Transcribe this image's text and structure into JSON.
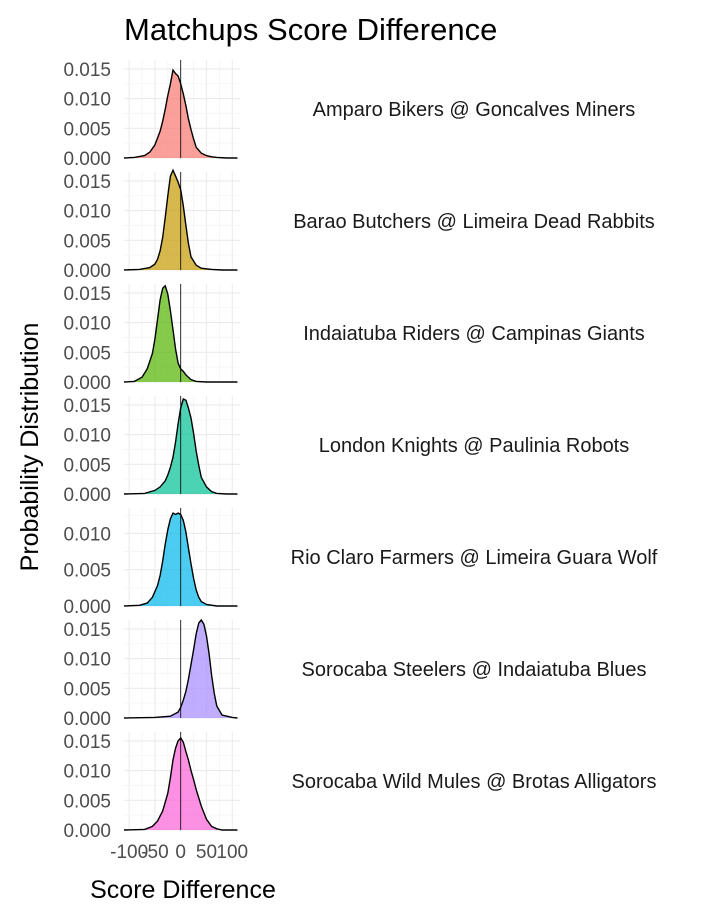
{
  "chart_data": {
    "type": "area",
    "title": "Matchups Score Difference",
    "xlabel": "Score Difference",
    "ylabel": "Probability Distribution",
    "xlim": [
      -110,
      115
    ],
    "x_ticks": [
      -100,
      -50,
      0,
      50,
      100
    ],
    "x_tick_labels": [
      "-100",
      "-50",
      "0",
      "50",
      "100"
    ],
    "reference_line_x": 0,
    "grid": true,
    "legend": "none",
    "facets": [
      {
        "label": "Amparo Bikers @ Goncalves Miners",
        "color": "#F8766D",
        "ylim": [
          0,
          0.0165
        ],
        "y_ticks": [
          0,
          0.005,
          0.01,
          0.015
        ],
        "y_tick_labels": [
          "0.000",
          "0.005",
          "0.010",
          "0.015"
        ],
        "x": [
          -110,
          -90,
          -70,
          -60,
          -50,
          -40,
          -35,
          -30,
          -25,
          -20,
          -15,
          -10,
          -5,
          0,
          5,
          10,
          15,
          20,
          25,
          30,
          40,
          50,
          60,
          70,
          90,
          110
        ],
        "density": [
          0,
          0.0001,
          0.0004,
          0.001,
          0.0022,
          0.0045,
          0.0062,
          0.0082,
          0.0105,
          0.0125,
          0.0148,
          0.0142,
          0.0138,
          0.0125,
          0.0108,
          0.0088,
          0.0066,
          0.0048,
          0.0032,
          0.0018,
          0.0008,
          0.0004,
          0.0002,
          0.0001,
          0,
          0
        ]
      },
      {
        "label": "Barao Butchers @ Limeira Dead Rabbits",
        "color": "#C49A00",
        "ylim": [
          0,
          0.0165
        ],
        "y_ticks": [
          0,
          0.005,
          0.01,
          0.015
        ],
        "y_tick_labels": [
          "0.000",
          "0.005",
          "0.010",
          "0.015"
        ],
        "x": [
          -110,
          -80,
          -60,
          -50,
          -45,
          -40,
          -35,
          -30,
          -25,
          -20,
          -15,
          -10,
          -5,
          0,
          5,
          10,
          15,
          20,
          30,
          40,
          60,
          80,
          110
        ],
        "density": [
          0,
          0.0001,
          0.0004,
          0.001,
          0.0018,
          0.0032,
          0.0055,
          0.0088,
          0.0125,
          0.0158,
          0.0168,
          0.0158,
          0.0148,
          0.0135,
          0.0108,
          0.0075,
          0.0045,
          0.0022,
          0.0008,
          0.0003,
          0.0001,
          0,
          0
        ]
      },
      {
        "label": "Indaiatuba Riders @ Campinas Giants",
        "color": "#53B400",
        "ylim": [
          0,
          0.0165
        ],
        "y_ticks": [
          0,
          0.005,
          0.01,
          0.015
        ],
        "y_tick_labels": [
          "0.000",
          "0.005",
          "0.010",
          "0.015"
        ],
        "x": [
          -110,
          -90,
          -75,
          -65,
          -55,
          -50,
          -45,
          -40,
          -35,
          -30,
          -25,
          -20,
          -15,
          -10,
          -5,
          0,
          5,
          10,
          20,
          30,
          50,
          70,
          110
        ],
        "density": [
          0,
          0.0001,
          0.0008,
          0.0022,
          0.0048,
          0.0072,
          0.0105,
          0.0138,
          0.0158,
          0.0162,
          0.0148,
          0.012,
          0.0088,
          0.0055,
          0.0032,
          0.0022,
          0.0018,
          0.0012,
          0.0004,
          0.0001,
          0,
          0,
          0
        ]
      },
      {
        "label": "London Knights @ Paulinia Robots",
        "color": "#00C094",
        "ylim": [
          0,
          0.0165
        ],
        "y_ticks": [
          0,
          0.005,
          0.01,
          0.015
        ],
        "y_tick_labels": [
          "0.000",
          "0.005",
          "0.010",
          "0.015"
        ],
        "x": [
          -110,
          -70,
          -50,
          -40,
          -30,
          -25,
          -20,
          -15,
          -10,
          -5,
          0,
          5,
          10,
          15,
          20,
          25,
          30,
          35,
          40,
          50,
          60,
          70,
          90,
          110
        ],
        "density": [
          0,
          0.0001,
          0.0006,
          0.0012,
          0.0022,
          0.0032,
          0.0045,
          0.0062,
          0.0088,
          0.0118,
          0.0145,
          0.016,
          0.0158,
          0.0145,
          0.0128,
          0.0102,
          0.0072,
          0.0048,
          0.0028,
          0.0012,
          0.0004,
          0.0001,
          0,
          0
        ]
      },
      {
        "label": "Rio Claro Farmers @ Limeira Guara Wolf",
        "color": "#00B6EB",
        "ylim": [
          0,
          0.0135
        ],
        "y_ticks": [
          0,
          0.005,
          0.01
        ],
        "y_tick_labels": [
          "0.000",
          "0.005",
          "0.010"
        ],
        "x": [
          -110,
          -80,
          -65,
          -55,
          -45,
          -40,
          -35,
          -30,
          -25,
          -20,
          -15,
          -10,
          -5,
          0,
          5,
          10,
          15,
          20,
          25,
          30,
          35,
          40,
          50,
          70,
          90,
          110
        ],
        "density": [
          0,
          0.0001,
          0.0004,
          0.0012,
          0.0028,
          0.0042,
          0.0062,
          0.0085,
          0.0105,
          0.012,
          0.0128,
          0.0126,
          0.0128,
          0.0126,
          0.0118,
          0.0102,
          0.008,
          0.0058,
          0.0038,
          0.0022,
          0.0012,
          0.0006,
          0.0002,
          0,
          0,
          0
        ]
      },
      {
        "label": "Sorocaba Steelers @ Indaiatuba Blues",
        "color": "#A58AFF",
        "ylim": [
          0,
          0.0165
        ],
        "y_ticks": [
          0,
          0.005,
          0.01,
          0.015
        ],
        "y_tick_labels": [
          "0.000",
          "0.005",
          "0.010",
          "0.015"
        ],
        "x": [
          -110,
          -50,
          -20,
          -5,
          0,
          5,
          10,
          15,
          20,
          25,
          30,
          35,
          40,
          45,
          50,
          55,
          60,
          65,
          70,
          80,
          100,
          110
        ],
        "density": [
          0,
          0.0001,
          0.0003,
          0.001,
          0.0018,
          0.003,
          0.0045,
          0.0065,
          0.009,
          0.0115,
          0.0142,
          0.016,
          0.0165,
          0.0158,
          0.0138,
          0.0108,
          0.0072,
          0.0042,
          0.002,
          0.0005,
          0.0001,
          0
        ]
      },
      {
        "label": "Sorocaba Wild Mules @ Brotas Alligators",
        "color": "#FB61D7",
        "ylim": [
          0,
          0.0165
        ],
        "y_ticks": [
          0,
          0.005,
          0.01,
          0.015
        ],
        "y_tick_labels": [
          "0.000",
          "0.005",
          "0.010",
          "0.015"
        ],
        "x": [
          -110,
          -70,
          -55,
          -45,
          -35,
          -25,
          -20,
          -15,
          -10,
          -5,
          0,
          5,
          10,
          15,
          20,
          25,
          30,
          40,
          50,
          60,
          70,
          80,
          110
        ],
        "density": [
          0,
          0.0001,
          0.0006,
          0.0015,
          0.0032,
          0.0062,
          0.0088,
          0.0118,
          0.0138,
          0.015,
          0.0155,
          0.0148,
          0.0132,
          0.0118,
          0.01,
          0.0085,
          0.0068,
          0.004,
          0.0018,
          0.0006,
          0.0002,
          0,
          0
        ]
      }
    ]
  }
}
